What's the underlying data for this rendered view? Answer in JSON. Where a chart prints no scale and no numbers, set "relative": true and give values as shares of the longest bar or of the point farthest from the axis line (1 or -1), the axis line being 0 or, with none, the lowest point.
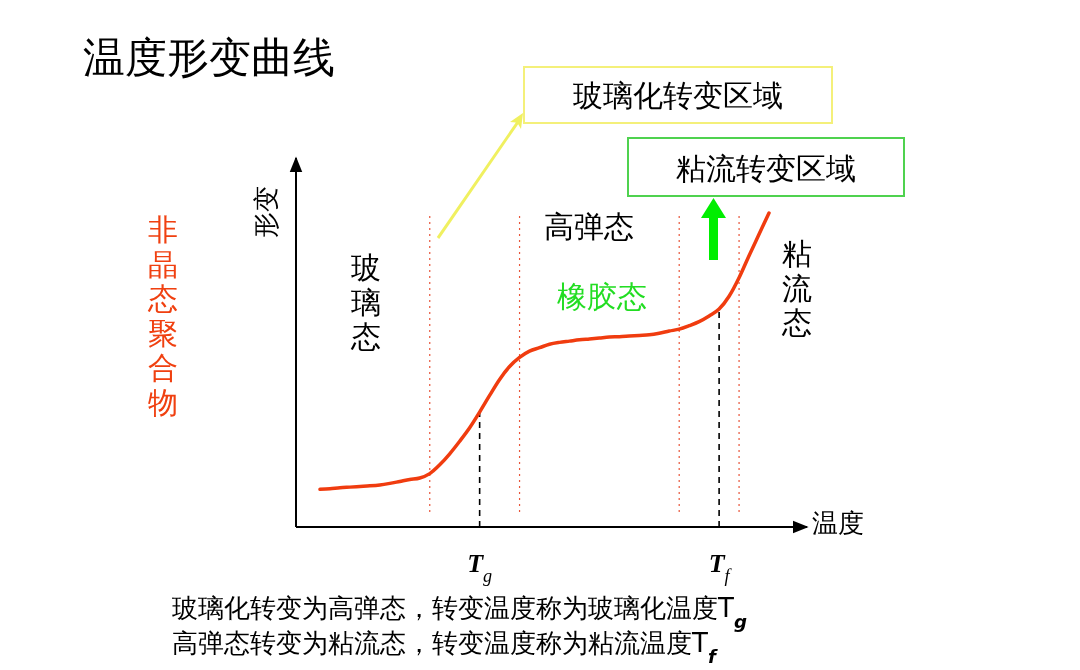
{
  "chart_data": {
    "type": "line",
    "title": "温度形变曲线",
    "xlabel": "温度",
    "ylabel": "形变",
    "relative": true,
    "marker": "none",
    "line_style": "solid",
    "grid": false,
    "categories": [
      null,
      null,
      null,
      null,
      null,
      null,
      null,
      null,
      null,
      null,
      null,
      null,
      null,
      null,
      null,
      null,
      "T$_{g}$",
      null,
      null,
      null,
      null,
      null,
      null,
      null,
      null,
      null,
      null,
      null,
      null,
      null,
      null,
      null,
      null,
      null,
      null,
      null,
      null,
      null,
      null,
      null,
      "T$_{f}$",
      null,
      null,
      null,
      null,
      null
    ],
    "series": [
      {
        "color": "#f03c0f",
        "values": [
          0.12,
          0.122,
          0.125,
          0.127,
          0.129,
          0.131,
          0.134,
          0.139,
          0.145,
          0.151,
          0.156,
          0.17,
          0.198,
          0.233,
          0.273,
          0.316,
          0.366,
          0.419,
          0.47,
          0.511,
          0.54,
          0.56,
          0.571,
          0.582,
          0.588,
          0.592,
          0.596,
          0.599,
          0.602,
          0.605,
          0.606,
          0.608,
          0.61,
          0.612,
          0.617,
          0.624,
          0.63,
          0.641,
          0.654,
          0.672,
          0.694,
          0.735,
          0.794,
          0.864,
          0.932,
          1.0
        ]
      }
    ],
    "ref_lines": [
      {
        "axis": "x",
        "value": "T$_{g}$",
        "color": "#000000",
        "line_style": "dashed"
      },
      {
        "axis": "x",
        "value": "T$_{f}$",
        "color": "#000000",
        "line_style": "dashed"
      }
    ],
    "annotations": [
      "玻璃化转变区域",
      "粘流转变区域",
      "玻璃态",
      "高弹态",
      "橡胶态",
      "粘流态",
      "非晶态聚合物",
      "玻璃化转变为高弹态，转变温度称为玻璃化温度T$_{g}$",
      "高弹态转变为粘流态，转变温度称为粘流温度T$_{f}$"
    ]
  }
}
